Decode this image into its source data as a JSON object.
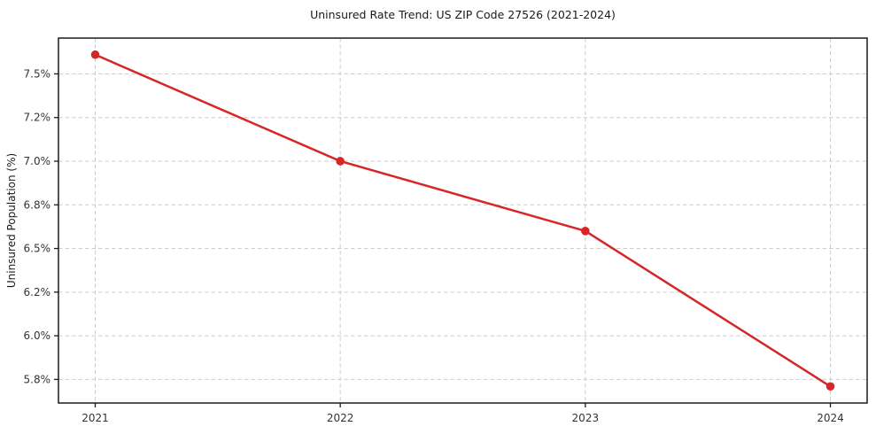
{
  "chart_data": {
    "type": "line",
    "title": "Uninsured Rate Trend: US ZIP Code 27526 (2021-2024)",
    "xlabel": "",
    "ylabel": "Uninsured Population (%)",
    "x": [
      2021,
      2022,
      2023,
      2024
    ],
    "values": [
      7.61,
      7.0,
      6.6,
      5.71
    ],
    "xlim": [
      2020.85,
      2024.15
    ],
    "ylim": [
      5.615,
      7.705
    ],
    "xticks": {
      "values": [
        2021,
        2022,
        2023,
        2024
      ],
      "labels": [
        "2021",
        "2022",
        "2023",
        "2024"
      ]
    },
    "yticks": {
      "values": [
        5.75,
        6.0,
        6.25,
        6.5,
        6.75,
        7.0,
        7.25,
        7.5
      ],
      "labels": [
        "5.8%",
        "6.0%",
        "6.2%",
        "6.5%",
        "6.8%",
        "7.0%",
        "7.2%",
        "7.5%"
      ]
    },
    "grid": true,
    "grid_style": "dashed",
    "legend": "none",
    "colors": {
      "line": "#d62728",
      "marker": "#d62728",
      "grid": "#cccccc",
      "spine": "#1a1a1a",
      "tick_label": "#333333",
      "background": "#ffffff"
    }
  }
}
